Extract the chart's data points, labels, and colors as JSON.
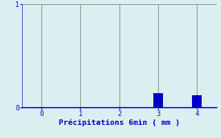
{
  "x_values": [
    0,
    1,
    2,
    3,
    4
  ],
  "bar_values": [
    0,
    0,
    0,
    0.14,
    0.12
  ],
  "xlim": [
    -0.5,
    4.5
  ],
  "ylim": [
    0,
    1.0
  ],
  "xlabel": "Précipitations 6min ( mm )",
  "xticks": [
    0,
    1,
    2,
    3,
    4
  ],
  "yticks": [
    0,
    1
  ],
  "bar_color": "#0000CC",
  "axis_color": "#0000CC",
  "bg_color": "#DCEFF0",
  "grid_color": "#909090",
  "xlabel_fontsize": 8,
  "tick_fontsize": 7,
  "bar_width": 0.25
}
